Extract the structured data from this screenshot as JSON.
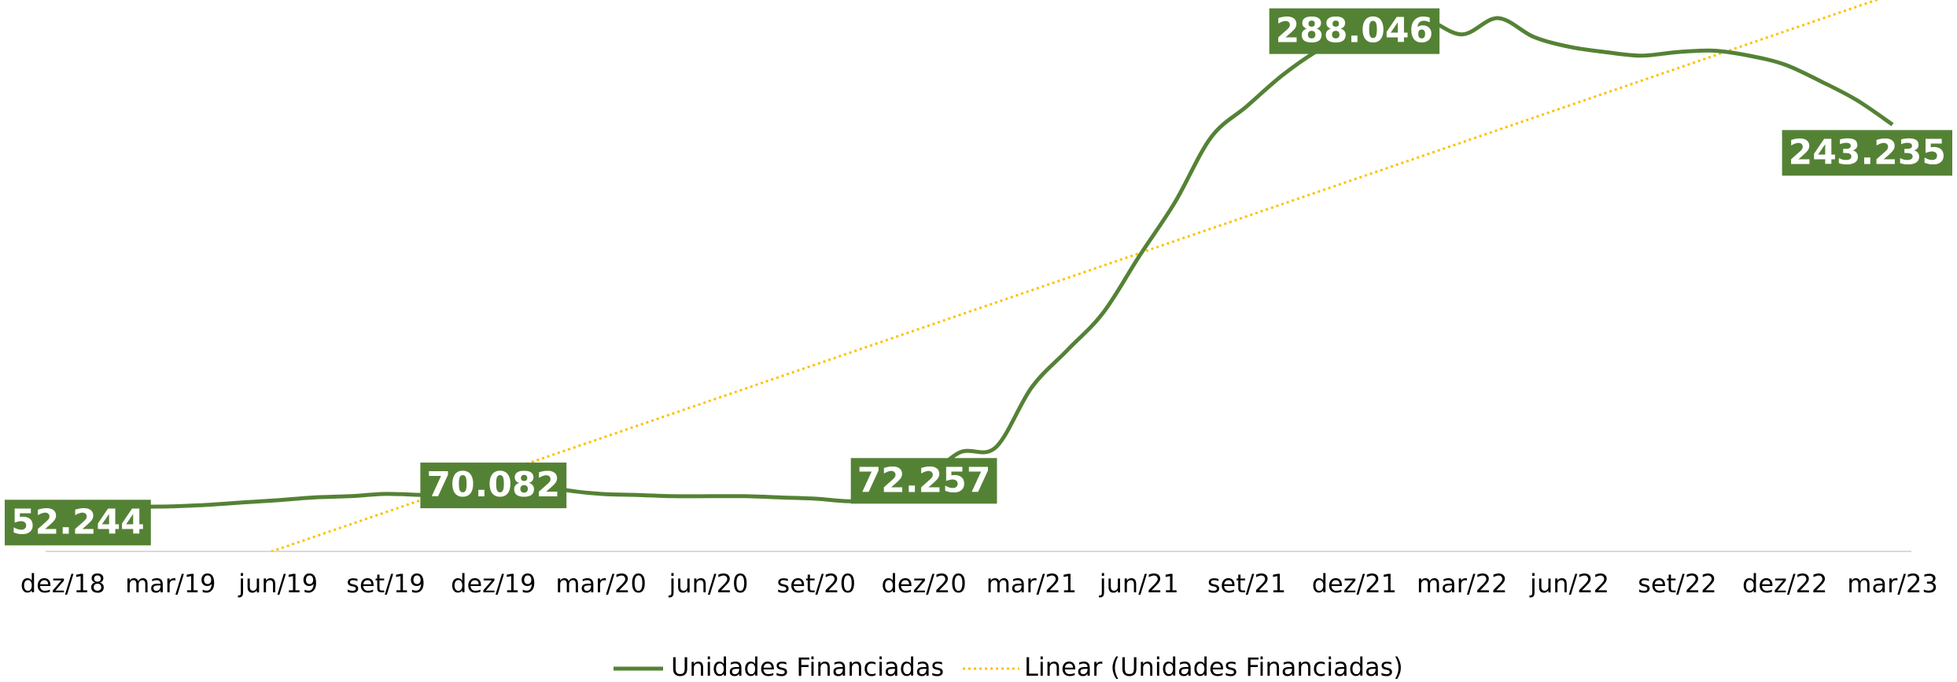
{
  "chart_data": {
    "type": "line",
    "categories": [
      "dez/18",
      null,
      null,
      "mar/19",
      null,
      null,
      "jun/19",
      null,
      null,
      "set/19",
      null,
      null,
      "dez/19",
      null,
      null,
      "mar/20",
      null,
      null,
      "jun/20",
      null,
      null,
      "set/20",
      null,
      null,
      "dez/20",
      null,
      null,
      "mar/21",
      null,
      null,
      "jun/21",
      null,
      null,
      "set/21",
      null,
      null,
      "dez/21",
      null,
      null,
      "mar/22",
      null,
      null,
      "jun/22",
      null,
      null,
      "set/22",
      null,
      null,
      "dez/22",
      null,
      null,
      "mar/23"
    ],
    "series": [
      {
        "name": "Unidades Financiadas",
        "color": "#548235",
        "values": [
          52244,
          56500,
          59500,
          60000,
          60700,
          61900,
          63000,
          64300,
          64900,
          66000,
          65500,
          65500,
          70082,
          72000,
          67900,
          66000,
          65500,
          64900,
          64900,
          64900,
          64300,
          63700,
          62500,
          64900,
          72257,
          85900,
          88300,
          117000,
          135000,
          153000,
          180000,
          206000,
          237000,
          252000,
          267000,
          279000,
          288046,
          297000,
          294000,
          286500,
          294300,
          285300,
          280500,
          278000,
          276300,
          278000,
          278700,
          276300,
          272000,
          264000,
          255000,
          243235
        ],
        "value_labels": [
          "52.244",
          null,
          null,
          null,
          null,
          null,
          null,
          null,
          null,
          null,
          null,
          null,
          "70.082",
          null,
          null,
          null,
          null,
          null,
          null,
          null,
          null,
          null,
          null,
          null,
          "72.257",
          null,
          null,
          null,
          null,
          null,
          null,
          null,
          null,
          null,
          null,
          null,
          "288.046",
          null,
          null,
          null,
          null,
          null,
          null,
          null,
          null,
          null,
          null,
          null,
          null,
          null,
          null,
          "243.235"
        ]
      }
    ],
    "trendline": {
      "name": "Linear (Unidades Financiadas)",
      "color": "#ffc000"
    },
    "ylim": [
      38400,
      303000
    ]
  }
}
